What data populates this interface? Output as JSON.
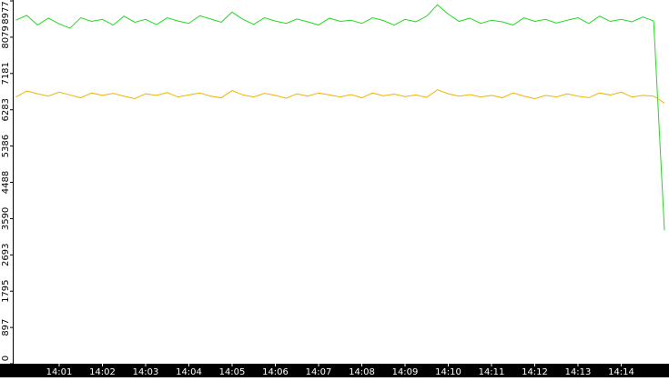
{
  "chart_data": {
    "type": "line",
    "categories": [
      null,
      null,
      null,
      null,
      "14:01",
      null,
      null,
      null,
      "14:02",
      null,
      null,
      null,
      "14:03",
      null,
      null,
      null,
      "14:04",
      null,
      null,
      null,
      "14:05",
      null,
      null,
      null,
      "14:06",
      null,
      null,
      null,
      "14:07",
      null,
      null,
      null,
      "14:08",
      null,
      null,
      null,
      "14:09",
      null,
      null,
      null,
      "14:10",
      null,
      null,
      null,
      "14:11",
      null,
      null,
      null,
      "14:12",
      null,
      null,
      null,
      "14:13",
      null,
      null,
      null,
      "14:14",
      null,
      null,
      null,
      null
    ],
    "series": [
      {
        "color": "#1fdc1f",
        "values": [
          8500,
          8620,
          8380,
          8550,
          8410,
          8300,
          8560,
          8470,
          8520,
          8380,
          8600,
          8450,
          8520,
          8390,
          8560,
          8480,
          8420,
          8610,
          8530,
          8450,
          8700,
          8520,
          8400,
          8560,
          8480,
          8420,
          8530,
          8460,
          8380,
          8550,
          8470,
          8500,
          8420,
          8560,
          8490,
          8380,
          8520,
          8460,
          8600,
          8880,
          8650,
          8470,
          8550,
          8420,
          8500,
          8460,
          8380,
          8560,
          8470,
          8520,
          8430,
          8500,
          8560,
          8420,
          8600,
          8470,
          8520,
          8460,
          8580,
          8480,
          3300
        ]
      },
      {
        "color": "#f0b400",
        "values": [
          6600,
          6750,
          6680,
          6620,
          6720,
          6650,
          6580,
          6700,
          6640,
          6690,
          6620,
          6560,
          6680,
          6640,
          6710,
          6600,
          6650,
          6700,
          6620,
          6580,
          6760,
          6650,
          6600,
          6690,
          6640,
          6570,
          6680,
          6620,
          6700,
          6650,
          6600,
          6660,
          6580,
          6700,
          6630,
          6670,
          6610,
          6650,
          6590,
          6780,
          6680,
          6620,
          6660,
          6600,
          6640,
          6580,
          6700,
          6620,
          6560,
          6640,
          6600,
          6680,
          6620,
          6580,
          6700,
          6650,
          6720,
          6600,
          6640,
          6620,
          6450
        ]
      }
    ],
    "ylim": [
      0,
      8977
    ],
    "yticks": [
      0,
      897,
      1795,
      2693,
      3590,
      4488,
      5386,
      6283,
      7181,
      8079,
      8977
    ]
  }
}
